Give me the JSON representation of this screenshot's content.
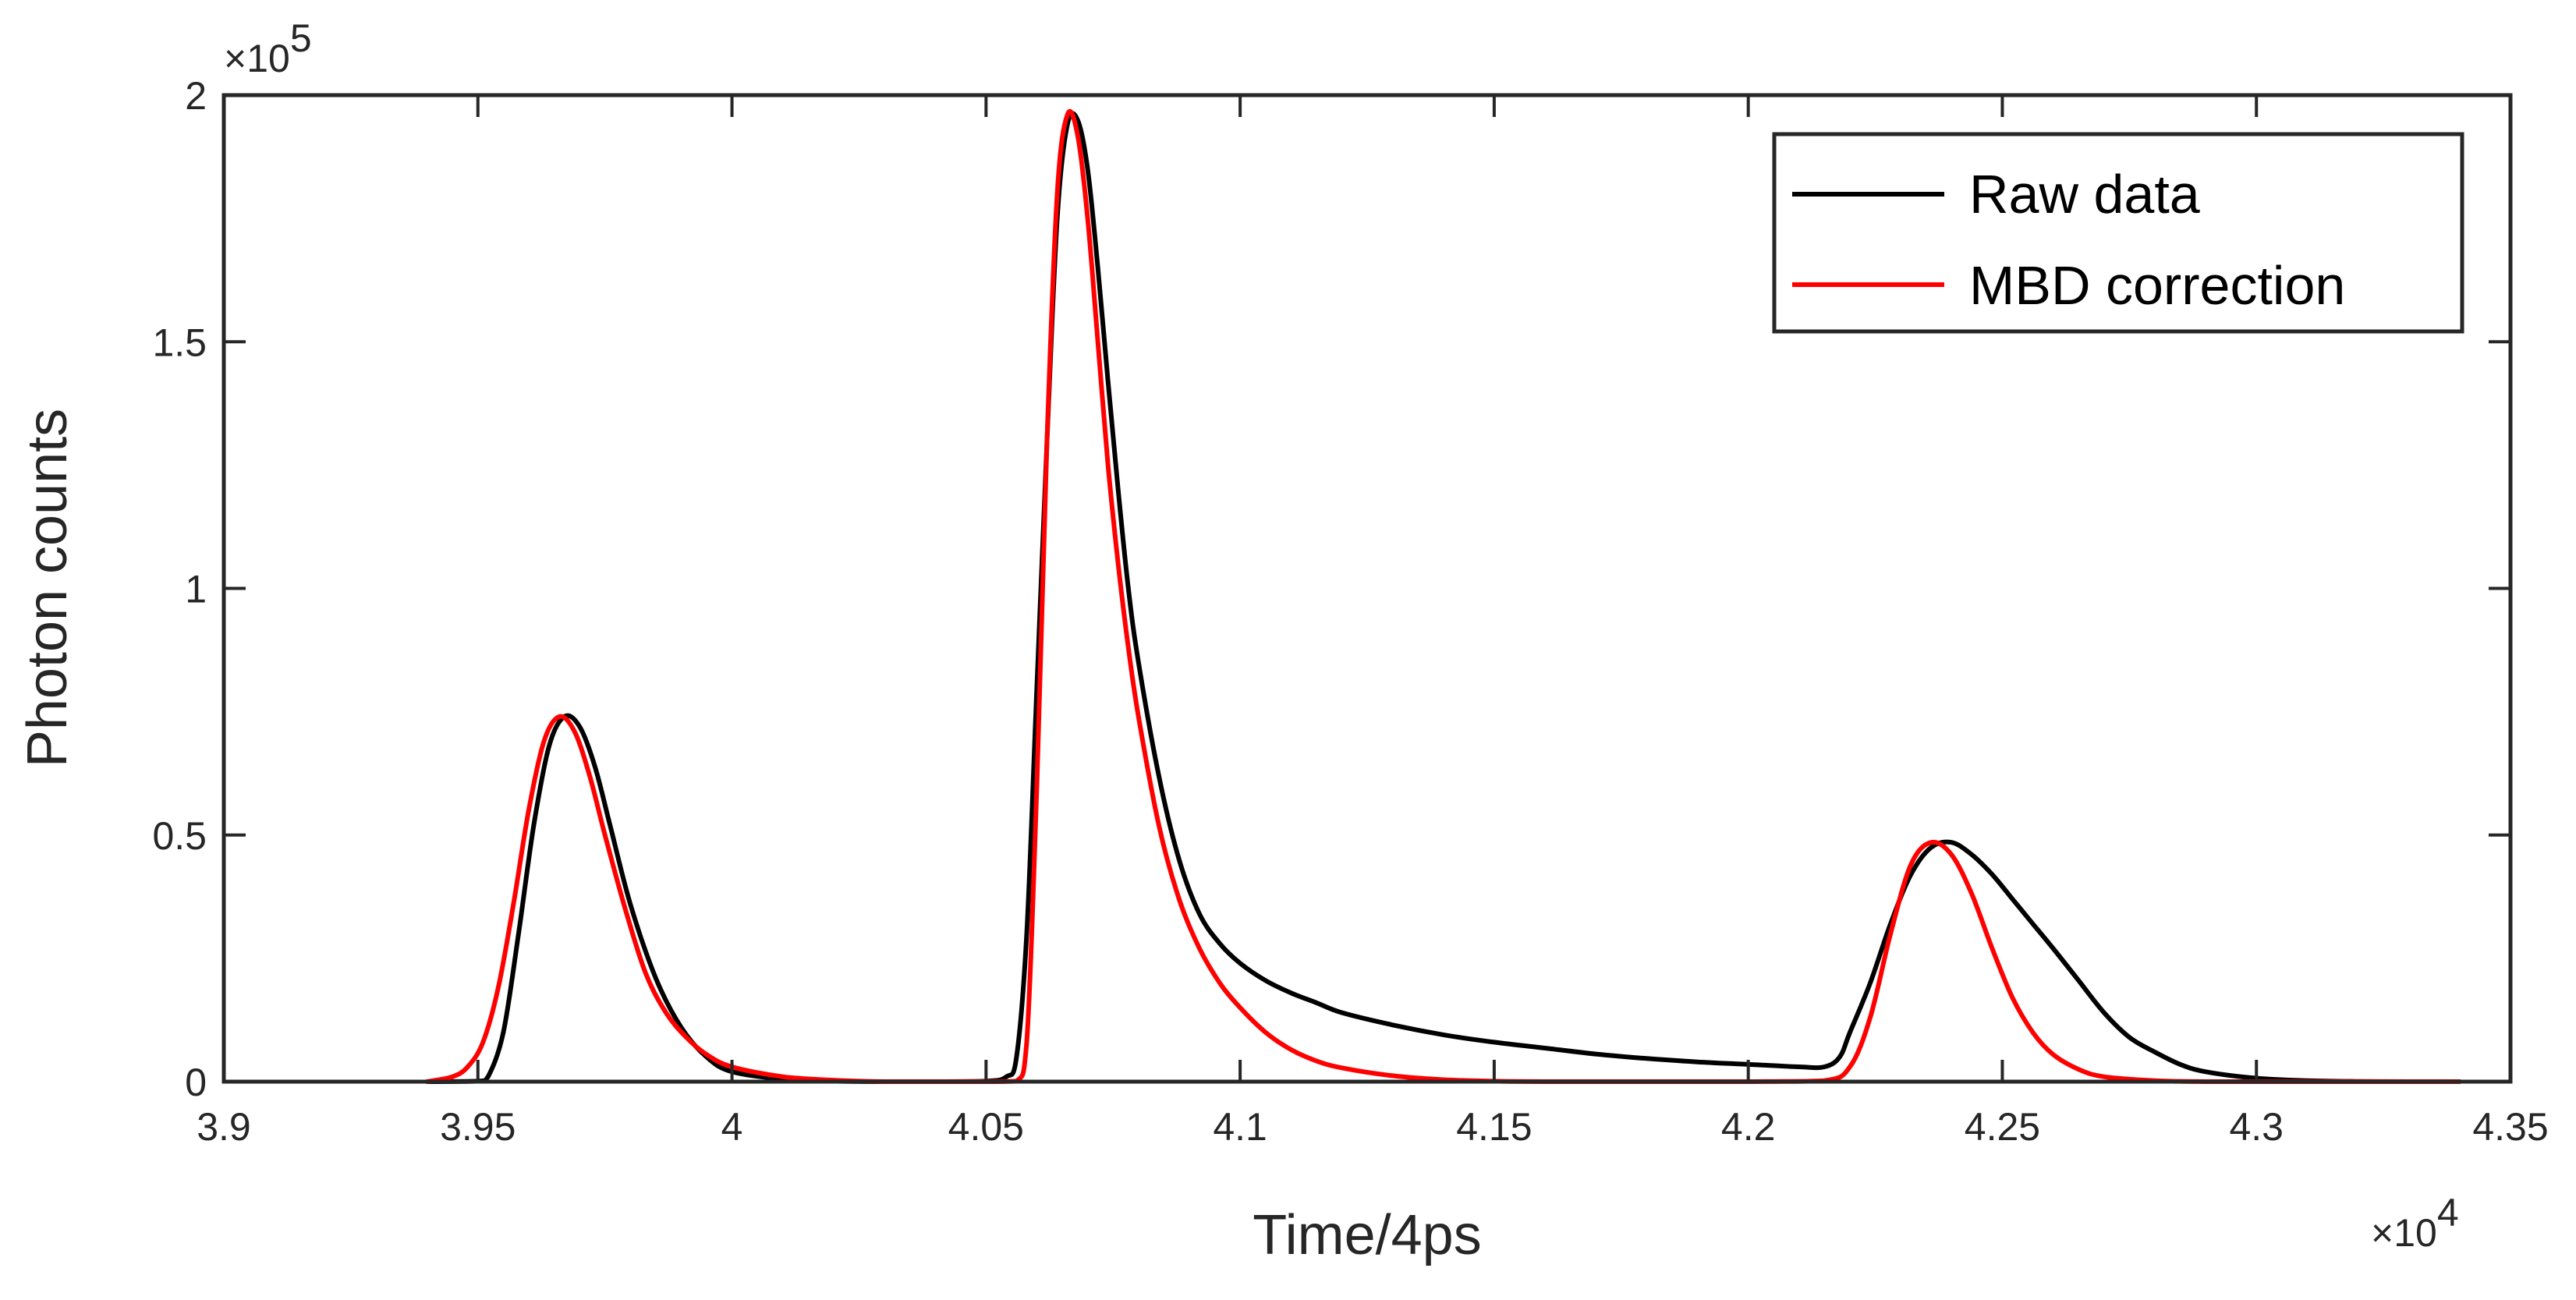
{
  "chart_data": {
    "type": "line",
    "title": "",
    "xlabel": "Time/4ps",
    "ylabel": "Photon counts",
    "x_multiplier_label": "×10",
    "x_multiplier_exp": "4",
    "y_multiplier_label": "×10",
    "y_multiplier_exp": "5",
    "xlim": [
      39000,
      43500
    ],
    "ylim": [
      0,
      200000
    ],
    "xticks": [
      39000,
      39500,
      40000,
      40500,
      41000,
      41500,
      42000,
      42500,
      43000,
      43500
    ],
    "xtick_labels": [
      "3.9",
      "3.95",
      "4",
      "4.05",
      "4.1",
      "4.15",
      "4.2",
      "4.25",
      "4.3",
      "4.35"
    ],
    "yticks": [
      0,
      50000,
      100000,
      150000,
      200000
    ],
    "ytick_labels": [
      "0",
      "0.5",
      "1",
      "1.5",
      "2"
    ],
    "grid": false,
    "legend_position": "top-right",
    "series": [
      {
        "name": "Raw data",
        "color": "#000000",
        "x": [
          39400,
          39500,
          39520,
          39550,
          39580,
          39610,
          39640,
          39670,
          39700,
          39730,
          39760,
          39800,
          39850,
          39900,
          39950,
          40000,
          40100,
          40200,
          40300,
          40400,
          40500,
          40540,
          40560,
          40580,
          40600,
          40620,
          40640,
          40660,
          40680,
          40700,
          40720,
          40740,
          40760,
          40780,
          40800,
          40840,
          40880,
          40920,
          40960,
          41000,
          41050,
          41100,
          41150,
          41200,
          41300,
          41400,
          41500,
          41600,
          41700,
          41800,
          41900,
          42000,
          42100,
          42150,
          42180,
          42200,
          42240,
          42280,
          42320,
          42360,
          42400,
          42440,
          42480,
          42520,
          42560,
          42600,
          42650,
          42700,
          42750,
          42800,
          42850,
          42900,
          43000,
          43100,
          43200,
          43300,
          43400
        ],
        "y": [
          0,
          100,
          1000,
          10000,
          30000,
          52000,
          68000,
          74000,
          72000,
          64000,
          52000,
          36000,
          21000,
          11000,
          5000,
          2000,
          500,
          100,
          0,
          0,
          100,
          1000,
          5000,
          30000,
          80000,
          130000,
          175000,
          194000,
          195000,
          185000,
          165000,
          142000,
          120000,
          100000,
          85000,
          62000,
          45000,
          34000,
          28000,
          24000,
          20500,
          18000,
          16000,
          14000,
          11500,
          9500,
          8000,
          6800,
          5600,
          4700,
          4000,
          3500,
          3000,
          3000,
          5000,
          10000,
          20000,
          32000,
          42000,
          47500,
          48500,
          46000,
          42000,
          37000,
          32000,
          27000,
          20500,
          14000,
          9000,
          6000,
          3500,
          2000,
          700,
          200,
          50,
          0,
          0
        ]
      },
      {
        "name": "MBD correction",
        "color": "#ff0000",
        "x": [
          39400,
          39450,
          39480,
          39510,
          39540,
          39570,
          39600,
          39630,
          39660,
          39690,
          39720,
          39750,
          39790,
          39830,
          39870,
          39910,
          39950,
          40000,
          40100,
          40200,
          40300,
          40400,
          40500,
          40560,
          40580,
          40600,
          40620,
          40640,
          40660,
          40680,
          40700,
          40720,
          40740,
          40760,
          40780,
          40800,
          40840,
          40880,
          40920,
          40960,
          41000,
          41050,
          41100,
          41150,
          41200,
          41300,
          41400,
          41500,
          41600,
          41800,
          42000,
          42150,
          42200,
          42240,
          42280,
          42320,
          42360,
          42400,
          42440,
          42480,
          42520,
          42560,
          42600,
          42650,
          42700,
          42800,
          42900,
          43000,
          43200,
          43400
        ],
        "y": [
          0,
          1000,
          3000,
          8000,
          19000,
          36000,
          55000,
          69000,
          74000,
          71000,
          62000,
          50000,
          35000,
          22000,
          14000,
          9000,
          5500,
          3000,
          1000,
          300,
          0,
          0,
          0,
          100,
          8000,
          60000,
          130000,
          180000,
          196000,
          192000,
          175000,
          150000,
          125000,
          105000,
          88000,
          74000,
          52000,
          37000,
          27000,
          20000,
          15000,
          10000,
          6500,
          4200,
          2800,
          1200,
          400,
          100,
          0,
          0,
          0,
          200,
          3000,
          13000,
          30000,
          44000,
          48500,
          46000,
          38000,
          27000,
          17000,
          10000,
          5500,
          2500,
          1000,
          200,
          0,
          0,
          0,
          0
        ]
      }
    ]
  }
}
